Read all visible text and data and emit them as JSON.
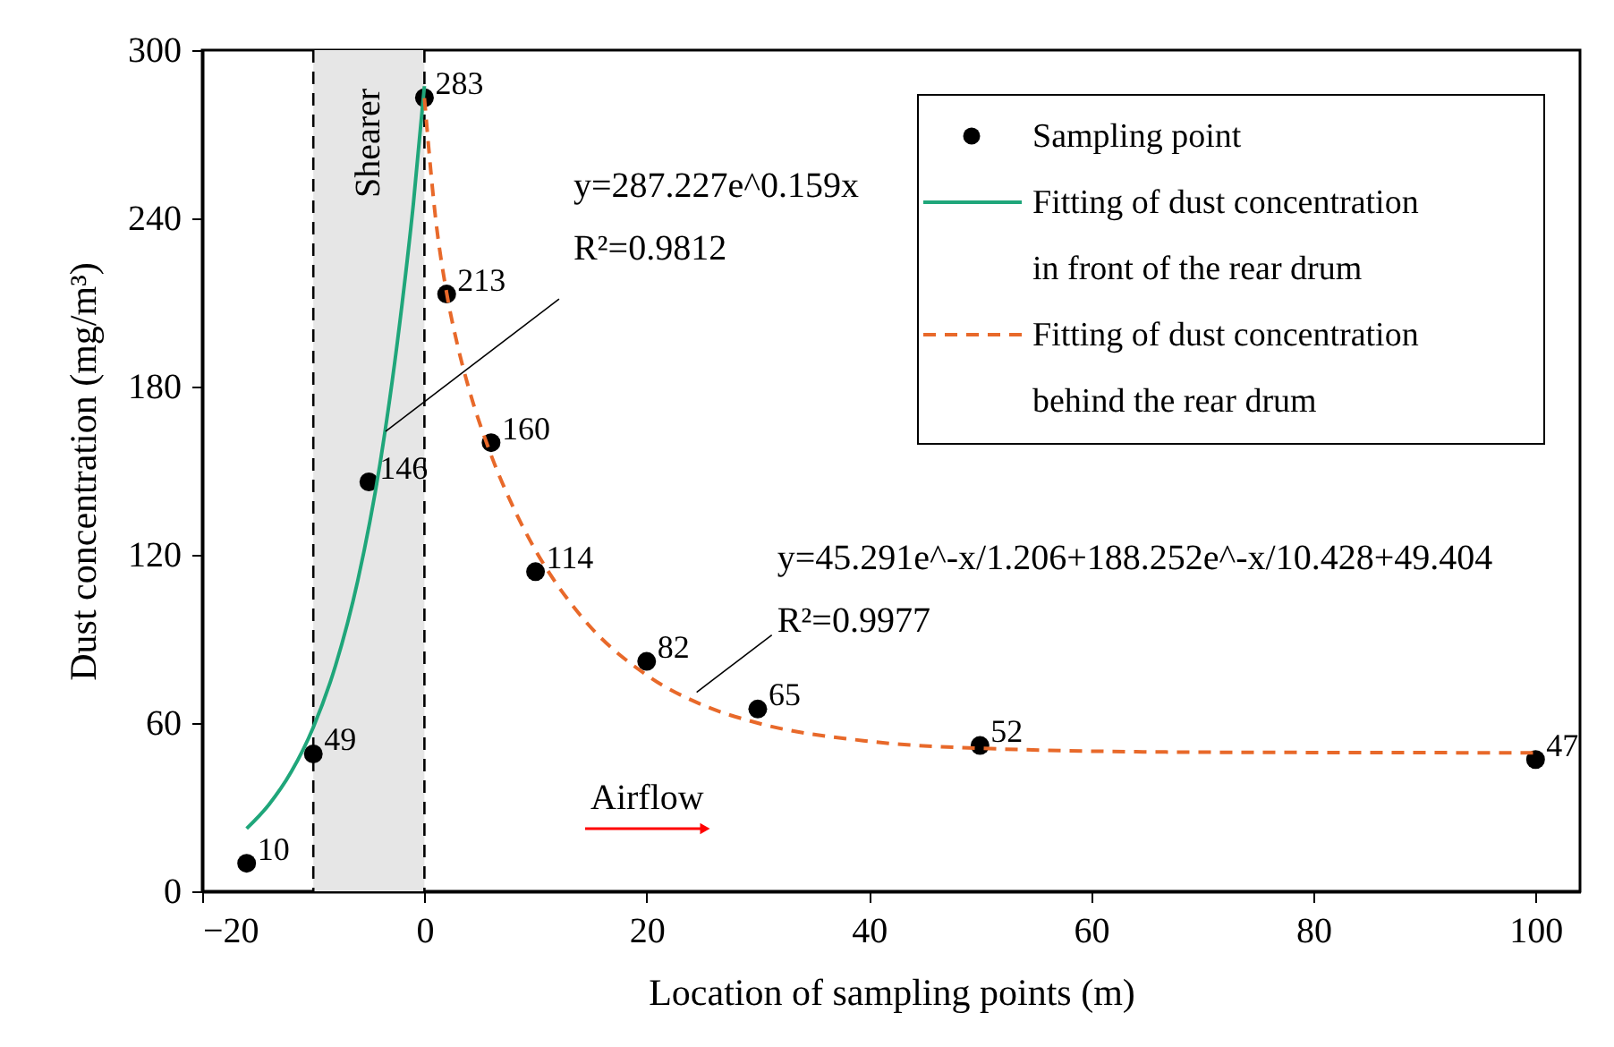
{
  "chart_data": {
    "type": "scatter",
    "xlabel": "Location of sampling points (m)",
    "ylabel": "Dust concentration (mg/m³)",
    "xlim": [
      -20,
      104
    ],
    "xticks": [
      -20,
      0,
      20,
      40,
      60,
      80,
      100
    ],
    "ylim": [
      0,
      300
    ],
    "yticks": [
      0,
      60,
      120,
      180,
      240,
      300
    ],
    "grid": false,
    "legend": "top right",
    "series": [
      {
        "name": "Sampling point",
        "color": "#000000",
        "marker": "circle",
        "data_labels": true,
        "x": [
          -16,
          -10,
          -5,
          0,
          2,
          6,
          10,
          20,
          30,
          50,
          100
        ],
        "values": [
          10,
          49,
          146,
          283,
          213,
          160,
          114,
          82,
          65,
          52,
          47
        ]
      },
      {
        "name": "Fitting of dust concentration in front of the rear drum",
        "type": "line",
        "color": "#1fa67a",
        "line_style": "solid",
        "x": [
          -16,
          -14,
          -12,
          -10,
          -8,
          -6,
          -4,
          -2,
          -1,
          0
        ],
        "values": [
          22.4,
          30.9,
          42.5,
          58.5,
          80.5,
          110.8,
          152.4,
          209.8,
          245.0,
          287.2
        ]
      },
      {
        "name": "Fitting of dust concentration behind the rear drum",
        "type": "line",
        "color": "#e8692a",
        "line_style": "dashed",
        "x": [
          0,
          1,
          2,
          3,
          4,
          6,
          8,
          10,
          14,
          20,
          25,
          30,
          40,
          50,
          70,
          100
        ],
        "values": [
          282.9,
          240.2,
          213.4,
          194.4,
          179.3,
          155.6,
          136.9,
          121.6,
          98.6,
          77.1,
          66.5,
          60.0,
          53.5,
          51.0,
          49.6,
          49.4
        ]
      }
    ],
    "ref_lines": [
      {
        "axis": "x",
        "value": -10,
        "color": "#000000",
        "line_style": "dashed"
      },
      {
        "axis": "x",
        "value": 0,
        "color": "#000000",
        "line_style": "dashed"
      }
    ],
    "bands": [
      {
        "axis": "x",
        "from": -10,
        "to": 0,
        "label": "Shearer",
        "color": "#e6e6e6"
      }
    ],
    "annotations": [
      {
        "text": "y=287.227e^0.159x\nR²=0.9812",
        "x": -3.5,
        "y": 164
      },
      {
        "text": "y=45.291e^-x/1.206+188.252e^-x/10.428+49.404\nR²=0.9977",
        "x": 24.5,
        "y": 71
      },
      "Airflow"
    ]
  }
}
